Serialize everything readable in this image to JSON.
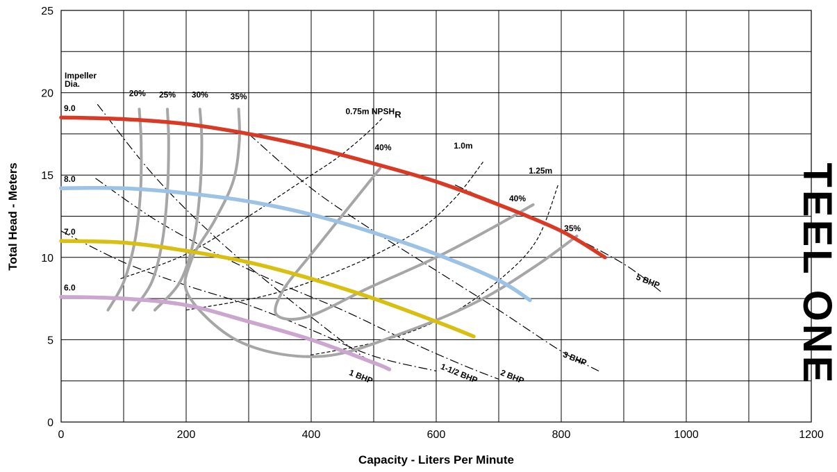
{
  "chart_data": {
    "type": "line",
    "xlabel": "Capacity - Liters Per Minute",
    "ylabel": "Total Head - Meters",
    "xlim": [
      0,
      1200
    ],
    "ylim": [
      0,
      25
    ],
    "xticks": [
      0,
      200,
      400,
      600,
      800,
      1000,
      1200
    ],
    "yticks": [
      0,
      5,
      10,
      15,
      20,
      25
    ],
    "grid": true,
    "impeller_header": [
      "Impeller",
      "Dia."
    ],
    "brand": "TEEL ONE",
    "colors": {
      "impeller_9": "#d93a25",
      "impeller_8": "#9cc2e6",
      "impeller_7": "#d8bf12",
      "impeller_6": "#cba6cf",
      "efficiency": "#a6a6a6",
      "grid": "#000000"
    },
    "impeller_curves": [
      {
        "name": "9.0",
        "color_key": "impeller_9",
        "x": [
          0,
          100,
          200,
          300,
          400,
          500,
          600,
          700,
          800,
          870
        ],
        "y": [
          18.5,
          18.4,
          18.1,
          17.5,
          16.7,
          15.7,
          14.6,
          13.2,
          11.6,
          10.0
        ]
      },
      {
        "name": "8.0",
        "color_key": "impeller_8",
        "x": [
          0,
          100,
          200,
          300,
          400,
          500,
          600,
          700,
          750
        ],
        "y": [
          14.2,
          14.2,
          13.9,
          13.4,
          12.6,
          11.5,
          10.2,
          8.6,
          7.4
        ]
      },
      {
        "name": "7.0",
        "color_key": "impeller_7",
        "x": [
          0,
          100,
          200,
          300,
          400,
          500,
          600,
          660
        ],
        "y": [
          11.0,
          10.9,
          10.4,
          9.7,
          8.7,
          7.5,
          6.1,
          5.2
        ]
      },
      {
        "name": "6.0",
        "color_key": "impeller_6",
        "x": [
          0,
          100,
          200,
          300,
          400,
          500,
          525
        ],
        "y": [
          7.6,
          7.5,
          7.1,
          6.1,
          5.0,
          3.6,
          3.2
        ]
      }
    ],
    "efficiency_curves": [
      {
        "name": "20%",
        "x": [
          75,
          100,
          118,
          127,
          128,
          125
        ],
        "y": [
          6.8,
          8.5,
          11.0,
          14.0,
          17.0,
          19.0
        ]
      },
      {
        "name": "25%",
        "x": [
          115,
          145,
          162,
          170,
          172,
          170
        ],
        "y": [
          6.8,
          8.5,
          11.0,
          14.0,
          17.0,
          19.0
        ]
      },
      {
        "name": "30%",
        "x": [
          150,
          190,
          212,
          222,
          225,
          222
        ],
        "y": [
          6.8,
          8.5,
          11.0,
          14.0,
          17.0,
          19.0
        ]
      },
      {
        "name": "35%",
        "x": [
          825,
          760,
          670,
          560,
          420,
          290,
          205,
          208,
          245,
          275,
          285,
          284
        ],
        "y": [
          11.3,
          9.5,
          7.4,
          5.6,
          4.0,
          4.8,
          7.6,
          9.8,
          12.2,
          14.6,
          17.0,
          19.0
        ]
      },
      {
        "name": "40%",
        "x": [
          755,
          690,
          600,
          495,
          395,
          345,
          355,
          400,
          455,
          510
        ],
        "y": [
          13.2,
          11.8,
          10.0,
          8.2,
          6.4,
          6.5,
          8.0,
          10.2,
          12.8,
          15.4
        ]
      }
    ],
    "efficiency_labels": [
      {
        "text": "20%",
        "x": 122,
        "y": 19.8
      },
      {
        "text": "25%",
        "x": 170,
        "y": 19.7
      },
      {
        "text": "30%",
        "x": 222,
        "y": 19.7
      },
      {
        "text": "35%",
        "x": 284,
        "y": 19.6
      },
      {
        "text": "40%",
        "x": 515,
        "y": 16.5
      },
      {
        "text": "40%",
        "x": 730,
        "y": 13.4
      },
      {
        "text": "35%",
        "x": 818,
        "y": 11.6
      }
    ],
    "bhp_curves": [
      {
        "name": "1 BHP",
        "x": [
          58,
          150,
          250,
          350,
          450,
          500
        ],
        "y": [
          19.3,
          14.9,
          11.1,
          7.9,
          4.9,
          3.5
        ]
      },
      {
        "name": "1-1/2 BHP",
        "x": [
          0,
          100,
          200,
          300,
          400,
          500,
          600
        ],
        "y": [
          11.6,
          9.7,
          8.3,
          7.1,
          5.6,
          4.0,
          3.1
        ]
      },
      {
        "name": "2 BHP",
        "x": [
          55,
          150,
          250,
          350,
          450,
          550,
          640,
          700
        ],
        "y": [
          14.8,
          12.3,
          10.2,
          8.4,
          6.8,
          5.0,
          3.5,
          2.6
        ]
      },
      {
        "name": "3 BHP",
        "x": [
          300,
          400,
          500,
          600,
          700,
          800,
          860
        ],
        "y": [
          17.5,
          14.2,
          11.6,
          9.2,
          6.8,
          4.3,
          3.1
        ]
      },
      {
        "name": "5 BHP",
        "x": [
          630,
          700,
          800,
          900,
          960
        ],
        "y": [
          14.4,
          13.2,
          11.6,
          9.6,
          7.9
        ]
      }
    ],
    "bhp_labels": [
      {
        "text": "1 BHP",
        "x": 478,
        "y": 2.6,
        "rotate": 22
      },
      {
        "text": "1-1/2 BHP",
        "x": 635,
        "y": 2.8,
        "rotate": 22
      },
      {
        "text": "2 BHP",
        "x": 720,
        "y": 2.6,
        "rotate": 22
      },
      {
        "text": "3 BHP",
        "x": 820,
        "y": 3.7,
        "rotate": 22
      },
      {
        "text": "5 BHP",
        "x": 937,
        "y": 8.4,
        "rotate": 22
      }
    ],
    "npshr_curves": [
      {
        "name": "0.75m NPSHR",
        "x": [
          95,
          200,
          300,
          380,
          440,
          485,
          515
        ],
        "y": [
          8.7,
          10.2,
          12.5,
          14.5,
          16.0,
          17.4,
          18.5
        ]
      },
      {
        "name": "1.0m",
        "x": [
          200,
          340,
          470,
          570,
          630,
          675
        ],
        "y": [
          6.8,
          7.8,
          9.6,
          11.6,
          13.6,
          15.8
        ]
      },
      {
        "name": "1.25m",
        "x": [
          390,
          520,
          620,
          700,
          760,
          795
        ],
        "y": [
          4.0,
          5.0,
          6.5,
          8.6,
          11.0,
          14.4
        ]
      }
    ],
    "npshr_labels": [
      {
        "text": "0.75m NPSH",
        "sub": "R",
        "x": 455,
        "y": 18.7
      },
      {
        "text": "1.0m",
        "x": 628,
        "y": 16.6
      },
      {
        "text": "1.25m",
        "x": 748,
        "y": 15.1
      }
    ]
  }
}
